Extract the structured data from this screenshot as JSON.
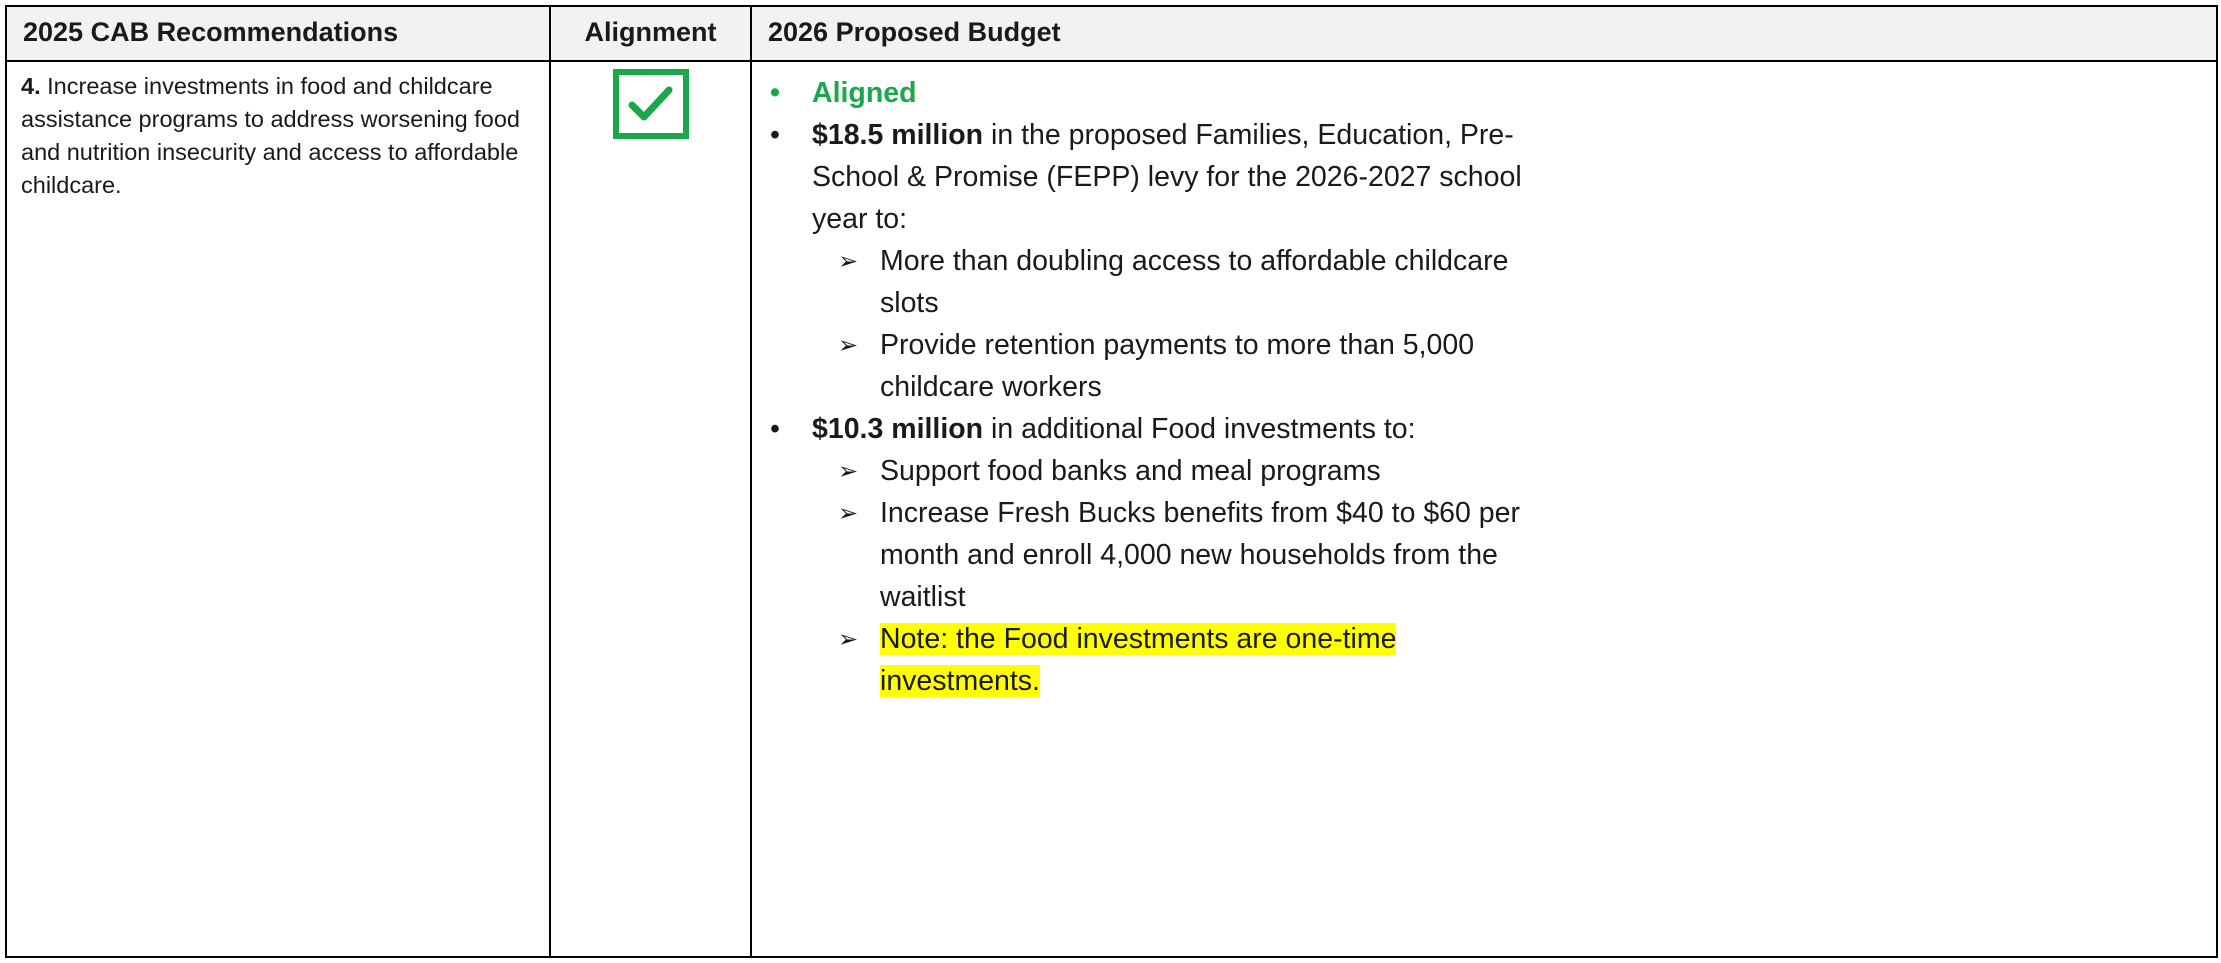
{
  "table": {
    "header": [
      "2025 CAB Recommendations",
      "Alignment",
      "2026 Proposed Budget"
    ],
    "rows": [
      {
        "recommendation": {
          "number": "4.",
          "text": "Increase investments in food and childcare assistance programs to address worsening food and nutrition insecurity and access to affordable childcare."
        },
        "budget": [
          {
            "text": "Aligned"
          },
          {
            "bold": "$18.5 million",
            "text": "in the proposed Families, Education, Pre-School & Promise (FEPP) levy for the 2026-2027 school year to:",
            "subitems": [
              "More than doubling access to affordable childcare slots",
              "Provide retention payments to more than 5,000 childcare workers"
            ]
          },
          {
            "bold": "$10.3 million",
            "text": "in additional Food investments to:",
            "subitems": [
              "Support food banks and meal programs",
              "Increase Fresh Bucks benefits from $40 to $60 per month and enroll 4,000 new households from the waitlist",
              "Note: the Food investments are one-time investments."
            ]
          }
        ]
      }
    ]
  }
}
